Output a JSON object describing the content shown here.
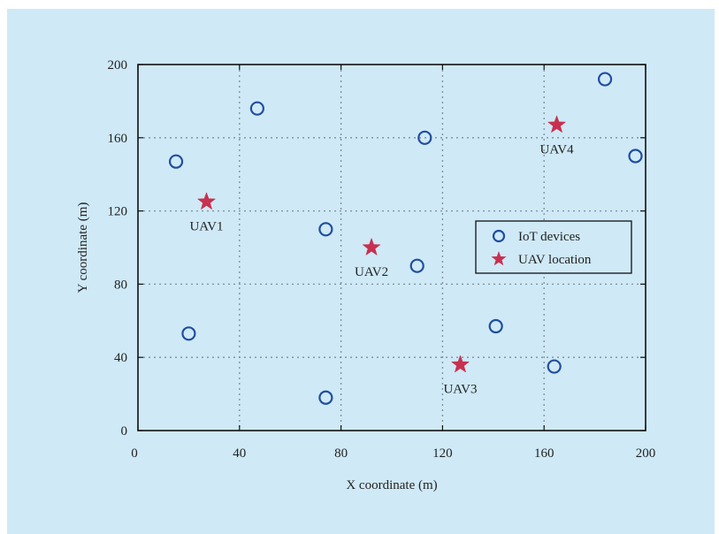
{
  "chart_data": {
    "type": "scatter",
    "xlabel": "X coordinate (m)",
    "ylabel": "Y coordinate (m)",
    "xlim": [
      0,
      200
    ],
    "ylim": [
      0,
      200
    ],
    "xticks": [
      "0",
      "40",
      "80",
      "120",
      "160",
      "200"
    ],
    "yticks": [
      "0",
      "40",
      "80",
      "120",
      "160",
      "200"
    ],
    "grid": true,
    "legend_position": "right-middle",
    "series": [
      {
        "name": "IoT devices",
        "marker": "circle",
        "color": "#1f4ea0",
        "points": [
          {
            "x": 15,
            "y": 147
          },
          {
            "x": 47,
            "y": 176
          },
          {
            "x": 20,
            "y": 53
          },
          {
            "x": 74,
            "y": 110
          },
          {
            "x": 74,
            "y": 18
          },
          {
            "x": 113,
            "y": 160
          },
          {
            "x": 110,
            "y": 90
          },
          {
            "x": 141,
            "y": 57
          },
          {
            "x": 164,
            "y": 35
          },
          {
            "x": 184,
            "y": 192
          },
          {
            "x": 196,
            "y": 150
          }
        ]
      },
      {
        "name": "UAV location",
        "marker": "star",
        "color": "#c8304f",
        "points": [
          {
            "x": 27,
            "y": 125,
            "label": "UAV1"
          },
          {
            "x": 92,
            "y": 100,
            "label": "UAV2"
          },
          {
            "x": 127,
            "y": 36,
            "label": "UAV3"
          },
          {
            "x": 165,
            "y": 167,
            "label": "UAV4"
          }
        ]
      }
    ]
  }
}
